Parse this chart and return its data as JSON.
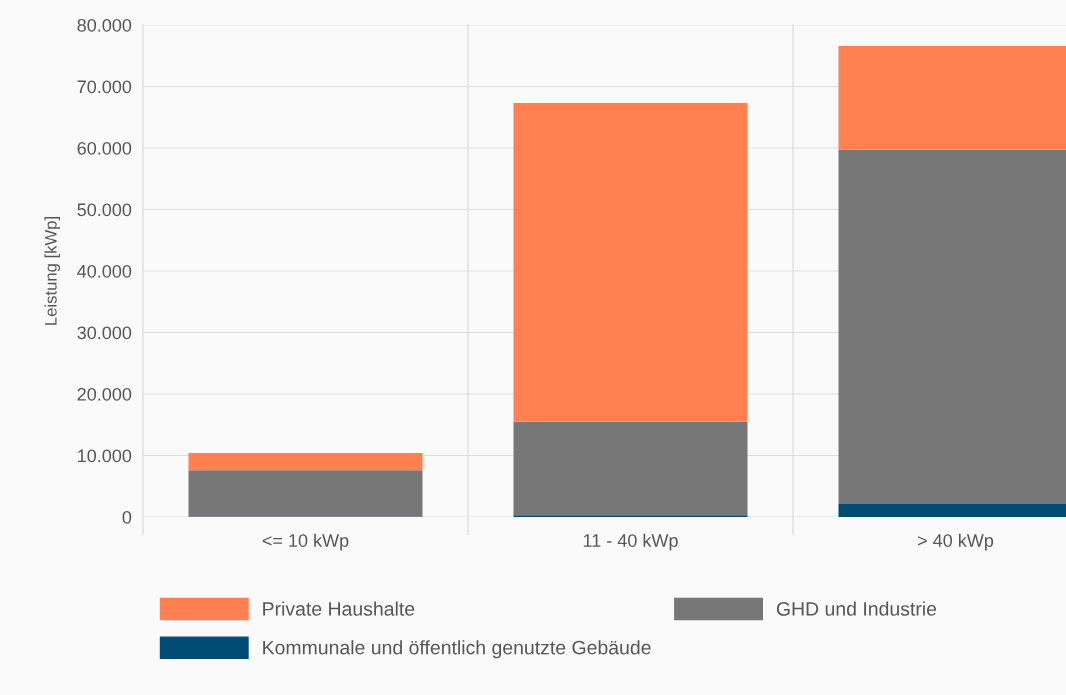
{
  "chart_data": {
    "type": "bar",
    "stacked": true,
    "ylabel": "Leistung [kWp]",
    "categories": [
      "<= 10 kWp",
      "11 - 40 kWp",
      "> 40 kWp"
    ],
    "series": [
      {
        "name": "Kommunale und öffentlich genutzte Gebäude",
        "color": "#004b73",
        "values": [
          100,
          300,
          2100
        ]
      },
      {
        "name": "GHD und Industrie",
        "color": "#777777",
        "values": [
          7500,
          15200,
          57600
        ]
      },
      {
        "name": "Private Haushalte",
        "color": "#ff8050",
        "values": [
          2800,
          51800,
          16900
        ]
      }
    ],
    "ylim": [
      0,
      80000
    ],
    "yticks": [
      {
        "value": 0,
        "label": "0"
      },
      {
        "value": 10000,
        "label": "10.000"
      },
      {
        "value": 20000,
        "label": "20.000"
      },
      {
        "value": 30000,
        "label": "30.000"
      },
      {
        "value": 40000,
        "label": "40.000"
      },
      {
        "value": 50000,
        "label": "50.000"
      },
      {
        "value": 60000,
        "label": "60.000"
      },
      {
        "value": 70000,
        "label": "70.000"
      },
      {
        "value": 80000,
        "label": "80.000"
      }
    ],
    "grid": true,
    "legend": "bottom"
  }
}
